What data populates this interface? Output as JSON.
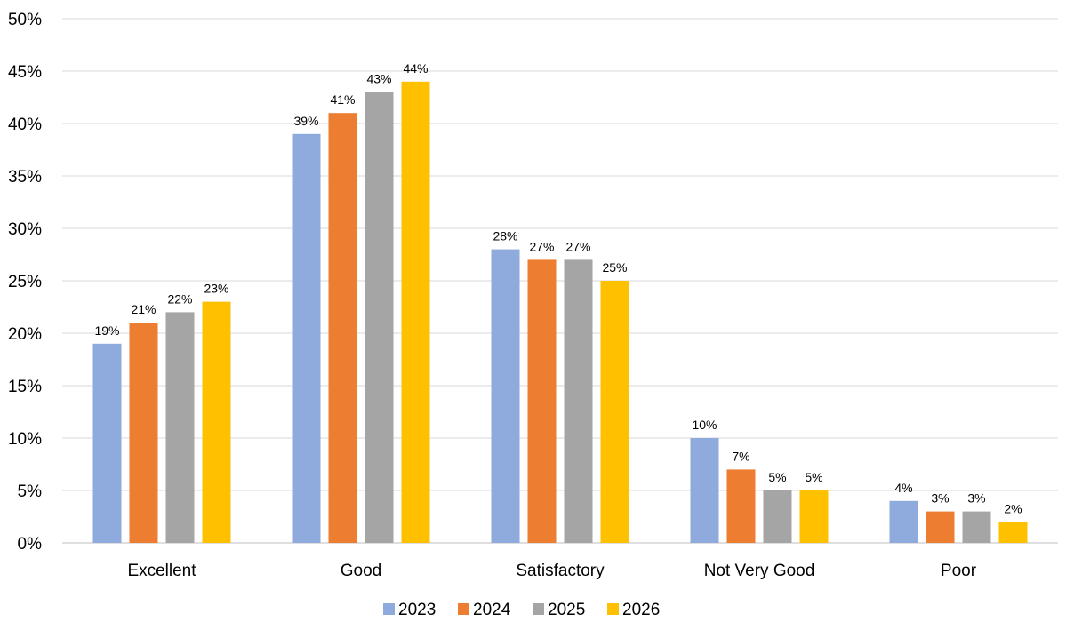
{
  "chart_data": {
    "type": "bar",
    "title": "",
    "xlabel": "",
    "ylabel": "",
    "categories": [
      "Excellent",
      "Good",
      "Satisfactory",
      "Not Very Good",
      "Poor"
    ],
    "series": [
      {
        "name": "2023",
        "color": "#8faadc",
        "values": [
          19,
          39,
          28,
          10,
          4
        ]
      },
      {
        "name": "2024",
        "color": "#ed7d31",
        "values": [
          21,
          41,
          27,
          7,
          3
        ]
      },
      {
        "name": "2025",
        "color": "#a5a5a5",
        "values": [
          22,
          43,
          27,
          5,
          3
        ]
      },
      {
        "name": "2026",
        "color": "#ffc000",
        "values": [
          23,
          44,
          25,
          5,
          2
        ]
      }
    ],
    "ylim": [
      0,
      50
    ],
    "yticks": [
      0,
      5,
      10,
      15,
      20,
      25,
      30,
      35,
      40,
      45,
      50
    ],
    "value_suffix": "%",
    "grid": true,
    "legend_position": "bottom"
  }
}
